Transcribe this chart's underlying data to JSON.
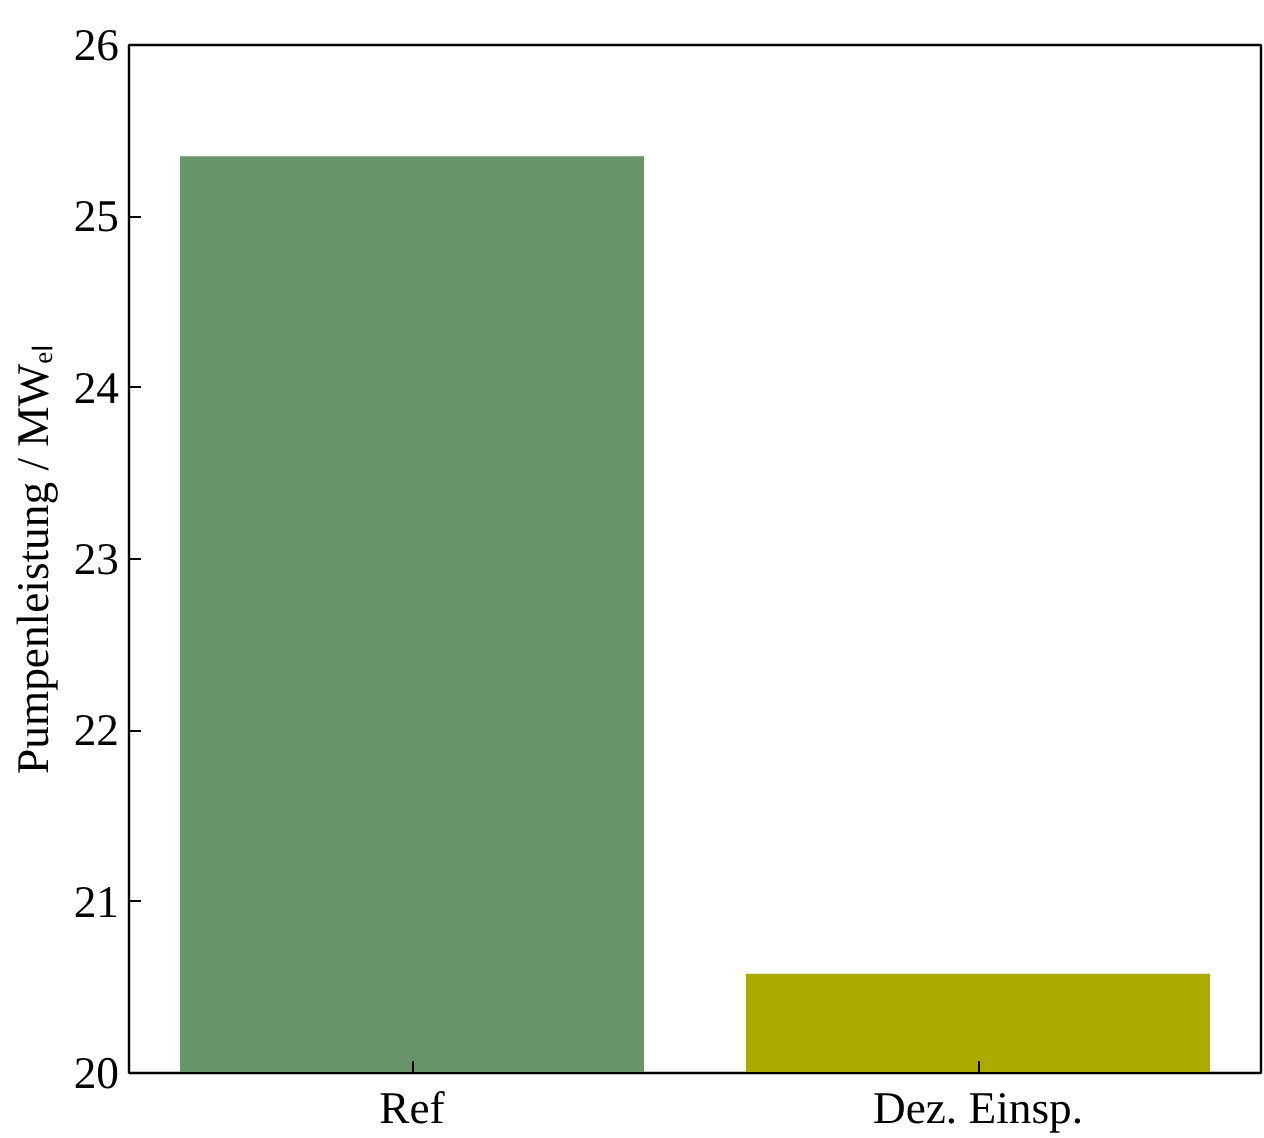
{
  "chart_data": {
    "type": "bar",
    "ylabel": "Pumpenleistung / MWₑₗ",
    "categories": [
      "Ref",
      "Dez. Einsp."
    ],
    "values": [
      25.35,
      20.58
    ],
    "colors": [
      "#68946a",
      "#aaaa00"
    ],
    "ylim": [
      20,
      26
    ],
    "yticks": [
      20,
      21,
      22,
      23,
      24,
      25,
      26
    ],
    "grid": false
  }
}
